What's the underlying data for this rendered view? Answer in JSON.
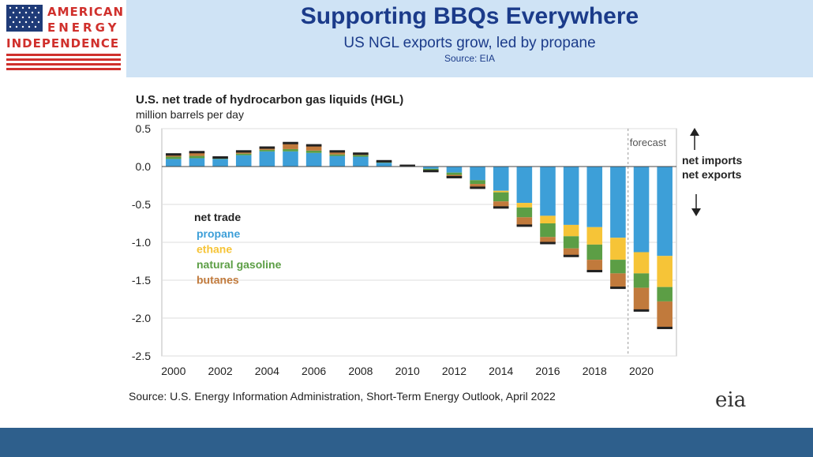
{
  "header": {
    "title": "Supporting BBQs Everywhere",
    "subtitle": "US NGL exports grow, led by propane",
    "source": "Source: EIA",
    "logo": {
      "line1": "AMERICAN",
      "line2": "ENERGY",
      "line3": "INDEPENDENCE"
    }
  },
  "colors": {
    "header_bg": "#cfe3f5",
    "title": "#1b3b8a",
    "propane": "#3d9fd8",
    "ethane": "#f6c437",
    "natural_gasoline": "#5c9e45",
    "butanes": "#c17a3c",
    "footer": "#2e5f8c"
  },
  "chart_data": {
    "type": "bar",
    "stacked": true,
    "title": "U.S. net trade of hydrocarbon gas liquids (HGL)",
    "ylabel": "million barrels per day",
    "ylim": [
      -2.5,
      0.5
    ],
    "yticks": [
      "0.5",
      "0.0",
      "-0.5",
      "-1.0",
      "-1.5",
      "-2.0",
      "-2.5"
    ],
    "xtick_labels": [
      "2000",
      "2002",
      "2004",
      "2006",
      "2008",
      "2010",
      "2012",
      "2014",
      "2016",
      "2018",
      "2020"
    ],
    "categories": [
      "2000",
      "2001",
      "2002",
      "2003",
      "2004",
      "2005",
      "2006",
      "2007",
      "2008",
      "2009",
      "2010",
      "2011",
      "2012",
      "2013",
      "2014",
      "2015",
      "2016",
      "2017",
      "2018",
      "2019",
      "2020",
      "2021"
    ],
    "series": [
      {
        "name": "propane",
        "color": "#3d9fd8",
        "values": [
          0.1,
          0.11,
          0.1,
          0.15,
          0.2,
          0.2,
          0.18,
          0.14,
          0.13,
          0.05,
          0.01,
          -0.03,
          -0.08,
          -0.18,
          -0.32,
          -0.48,
          -0.65,
          -0.77,
          -0.8,
          -0.94,
          -1.13,
          -1.18
        ]
      },
      {
        "name": "ethane",
        "color": "#f6c437",
        "values": [
          0,
          0,
          0,
          0,
          0,
          0,
          0,
          0,
          0,
          0,
          0,
          0,
          0,
          0,
          -0.02,
          -0.06,
          -0.1,
          -0.15,
          -0.23,
          -0.29,
          -0.28,
          -0.41
        ]
      },
      {
        "name": "natural gasoline",
        "color": "#5c9e45",
        "values": [
          0.03,
          0.03,
          0.01,
          0.02,
          0.02,
          0.03,
          0.03,
          0.02,
          0.02,
          0.01,
          0,
          -0.02,
          -0.03,
          -0.05,
          -0.12,
          -0.13,
          -0.18,
          -0.16,
          -0.2,
          -0.18,
          -0.19,
          -0.19
        ]
      },
      {
        "name": "butanes",
        "color": "#c17a3c",
        "values": [
          0.03,
          0.05,
          0.01,
          0.03,
          0.03,
          0.08,
          0.07,
          0.04,
          0.02,
          0.01,
          0,
          -0.01,
          -0.03,
          -0.05,
          -0.08,
          -0.11,
          -0.08,
          -0.1,
          -0.15,
          -0.19,
          -0.3,
          -0.35
        ]
      }
    ],
    "forecast_label": "forecast",
    "legend": {
      "title": "net trade",
      "position": "left"
    },
    "annotations": {
      "up": "net imports",
      "down": "net exports"
    },
    "source": "Source: U.S. Energy Information Administration, Short-Term Energy Outlook, April 2022",
    "grid": true
  },
  "eia_logo": "eia"
}
